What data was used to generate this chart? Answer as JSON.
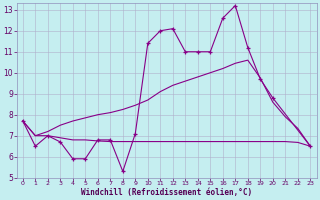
{
  "xlabel": "Windchill (Refroidissement éolien,°C)",
  "background_color": "#c5eef0",
  "grid_color": "#b0b0cc",
  "line_color": "#880088",
  "xlim": [
    -0.5,
    23.5
  ],
  "ylim": [
    5,
    13.3
  ],
  "xticks": [
    0,
    1,
    2,
    3,
    4,
    5,
    6,
    7,
    8,
    9,
    10,
    11,
    12,
    13,
    14,
    15,
    16,
    17,
    18,
    19,
    20,
    21,
    22,
    23
  ],
  "yticks": [
    5,
    6,
    7,
    8,
    9,
    10,
    11,
    12,
    13
  ],
  "line1_x": [
    0,
    1,
    2,
    3,
    4,
    5,
    6,
    7,
    8,
    9,
    10,
    11,
    12,
    13,
    14,
    15,
    16,
    17,
    18,
    19,
    20,
    23
  ],
  "line1_y": [
    7.7,
    6.5,
    7.0,
    6.7,
    5.9,
    5.9,
    6.8,
    6.8,
    5.3,
    7.1,
    11.4,
    12.0,
    12.1,
    11.0,
    11.0,
    11.0,
    12.6,
    13.2,
    11.2,
    9.7,
    8.8,
    6.5
  ],
  "line2_x": [
    0,
    1,
    2,
    3,
    4,
    5,
    6,
    7,
    8,
    9,
    10,
    11,
    12,
    13,
    14,
    15,
    16,
    17,
    18,
    19,
    20,
    21,
    22,
    23
  ],
  "line2_y": [
    7.7,
    7.0,
    7.0,
    6.9,
    6.8,
    6.8,
    6.75,
    6.72,
    6.72,
    6.72,
    6.72,
    6.72,
    6.72,
    6.72,
    6.72,
    6.72,
    6.72,
    6.72,
    6.72,
    6.72,
    6.72,
    6.72,
    6.68,
    6.5
  ],
  "line3_x": [
    0,
    1,
    2,
    3,
    4,
    5,
    6,
    7,
    8,
    9,
    10,
    11,
    12,
    13,
    14,
    15,
    16,
    17,
    18,
    19,
    20,
    21,
    22,
    23
  ],
  "line3_y": [
    7.7,
    7.0,
    7.2,
    7.5,
    7.7,
    7.85,
    8.0,
    8.1,
    8.25,
    8.45,
    8.7,
    9.1,
    9.4,
    9.6,
    9.8,
    10.0,
    10.2,
    10.45,
    10.6,
    9.75,
    8.6,
    7.9,
    7.35,
    6.5
  ]
}
